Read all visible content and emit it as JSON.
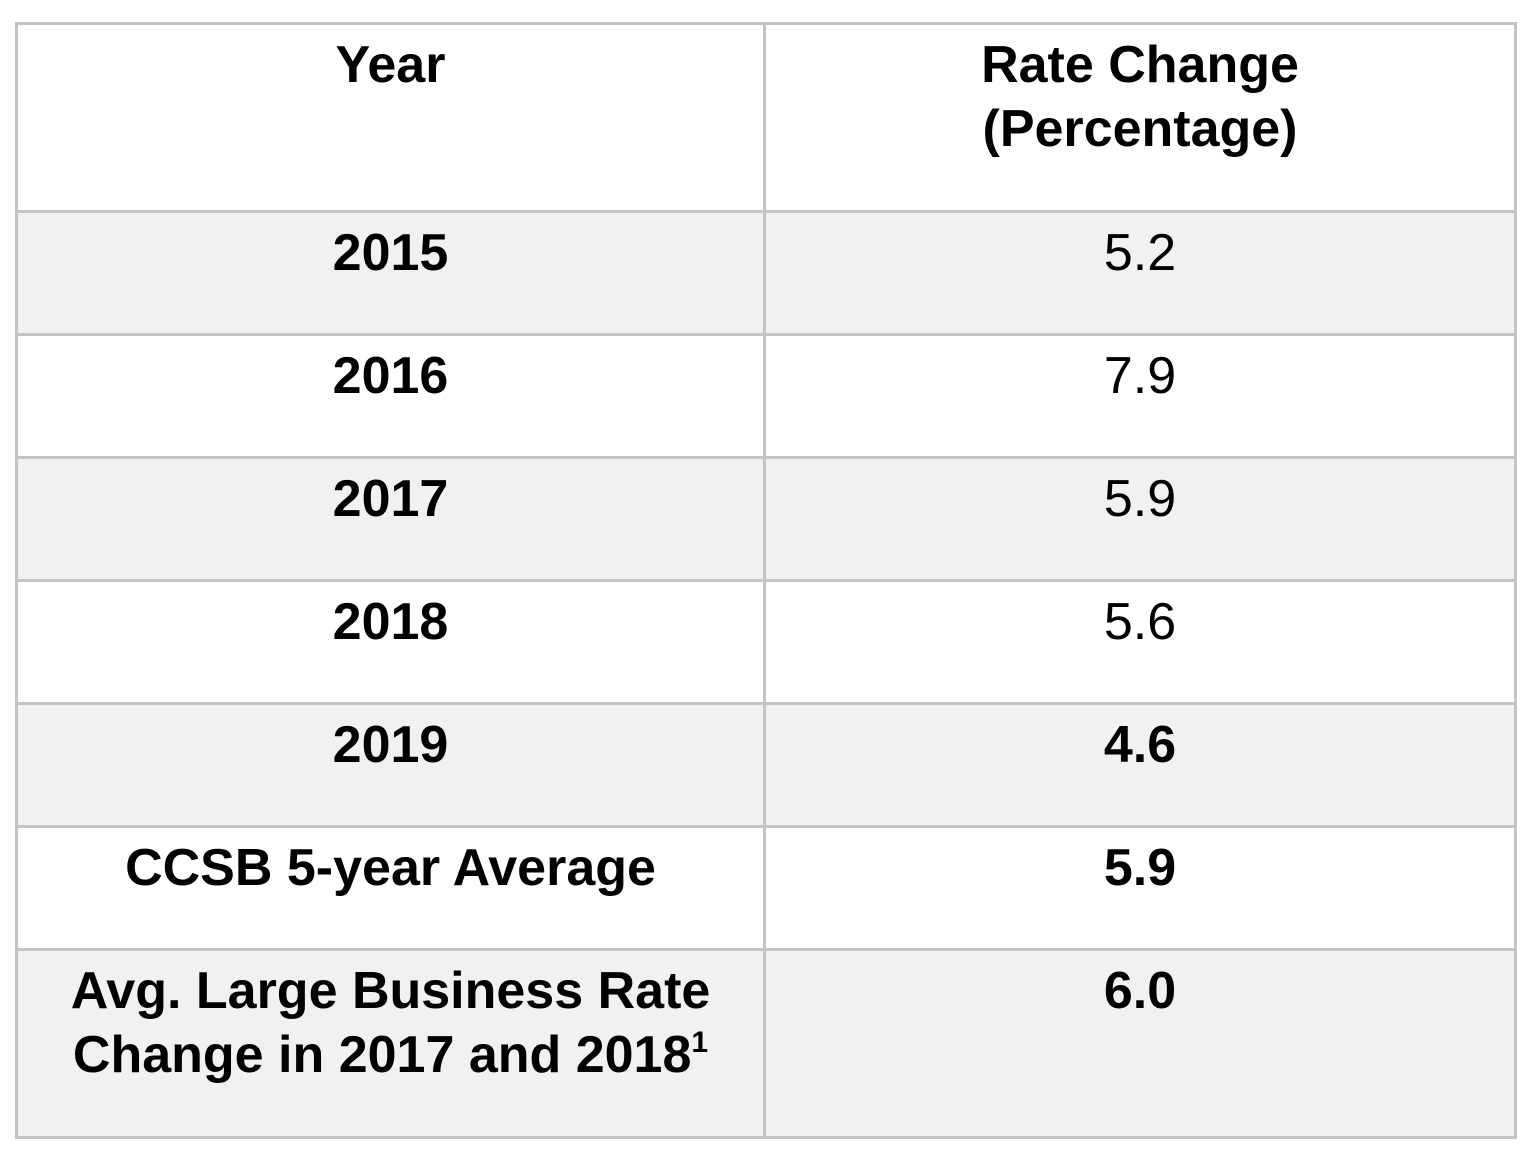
{
  "table": {
    "headers": {
      "year": "Year",
      "rate_line1": "Rate Change",
      "rate_line2": "(Percentage)"
    },
    "rows": [
      {
        "label": "2015",
        "value": "5.2"
      },
      {
        "label": "2016",
        "value": "7.9"
      },
      {
        "label": "2017",
        "value": "5.9"
      },
      {
        "label": "2018",
        "value": "5.6"
      },
      {
        "label": "2019",
        "value": "4.6"
      },
      {
        "label": "CCSB 5-year Average",
        "value": "5.9"
      }
    ],
    "last_row": {
      "label_line1": "Avg. Large Business Rate",
      "label_line2": "Change in 2017 and 2018",
      "footnote": "1",
      "value": "6.0"
    }
  }
}
